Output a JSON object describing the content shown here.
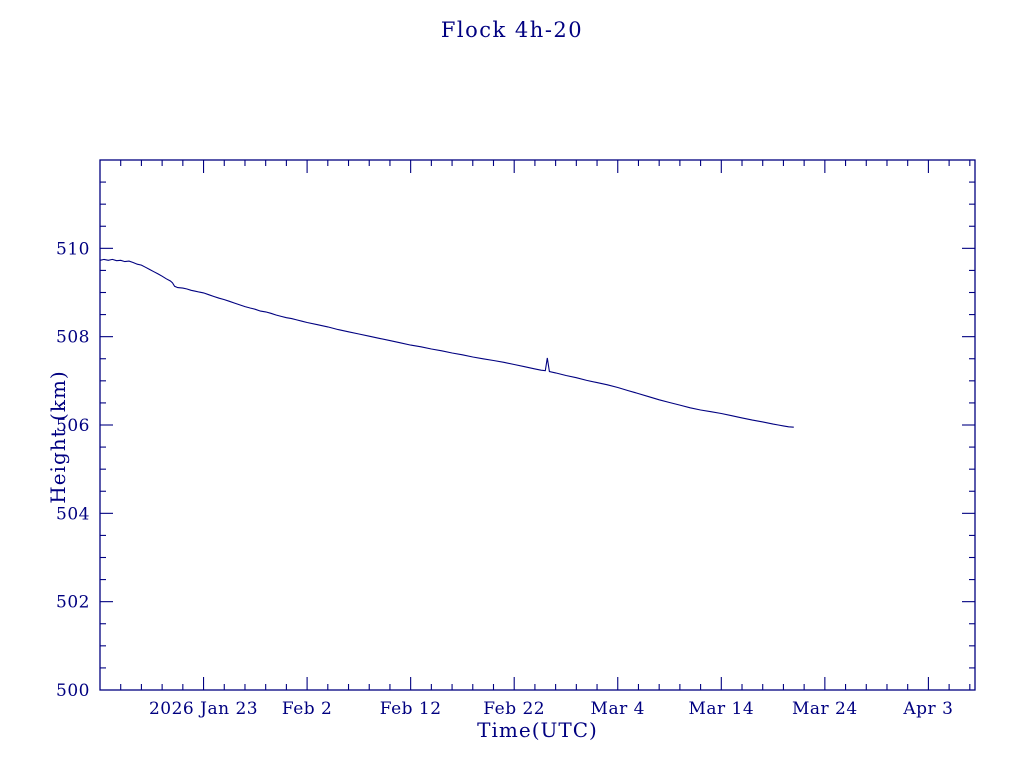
{
  "chart_data": {
    "type": "line",
    "title": "Flock 4h-20",
    "xlabel": "Time(UTC)",
    "ylabel": "Height (km)",
    "ylim": [
      500,
      512
    ],
    "xlim_days": [
      0,
      84.5
    ],
    "x_epoch": "day 0 = 2026 Jan 13 (UTC)",
    "grid": "off",
    "legend": "none",
    "line_color": "#000080",
    "axis_color": "#000080",
    "y_ticks_labeled": [
      500,
      502,
      504,
      506,
      508,
      510
    ],
    "y_minor_step": 0.5,
    "x_minor_step": 2,
    "x_ticks": [
      {
        "day": 10,
        "label": "2026 Jan 23"
      },
      {
        "day": 20,
        "label": "Feb 2"
      },
      {
        "day": 30,
        "label": "Feb 12"
      },
      {
        "day": 40,
        "label": "Feb 22"
      },
      {
        "day": 50,
        "label": "Mar 4"
      },
      {
        "day": 60,
        "label": "Mar 14"
      },
      {
        "day": 70,
        "label": "Mar 24"
      },
      {
        "day": 80,
        "label": "Apr 3"
      }
    ],
    "series": [
      {
        "name": "height",
        "points": [
          [
            0.0,
            509.73
          ],
          [
            0.4,
            509.75
          ],
          [
            0.8,
            509.73
          ],
          [
            1.2,
            509.75
          ],
          [
            1.6,
            509.72
          ],
          [
            2.0,
            509.73
          ],
          [
            2.4,
            509.7
          ],
          [
            2.8,
            509.71
          ],
          [
            3.2,
            509.68
          ],
          [
            3.6,
            509.64
          ],
          [
            4.0,
            509.62
          ],
          [
            4.4,
            509.57
          ],
          [
            4.8,
            509.52
          ],
          [
            5.2,
            509.47
          ],
          [
            5.6,
            509.42
          ],
          [
            6.0,
            509.37
          ],
          [
            6.4,
            509.31
          ],
          [
            6.8,
            509.26
          ],
          [
            7.0,
            509.22
          ],
          [
            7.2,
            509.14
          ],
          [
            7.5,
            509.11
          ],
          [
            8.0,
            509.1
          ],
          [
            8.4,
            509.08
          ],
          [
            8.8,
            509.05
          ],
          [
            9.2,
            509.03
          ],
          [
            9.6,
            509.01
          ],
          [
            10.0,
            508.99
          ],
          [
            10.5,
            508.95
          ],
          [
            11.0,
            508.91
          ],
          [
            11.5,
            508.87
          ],
          [
            12.0,
            508.84
          ],
          [
            12.5,
            508.8
          ],
          [
            13.0,
            508.76
          ],
          [
            13.5,
            508.72
          ],
          [
            14.0,
            508.68
          ],
          [
            14.5,
            508.65
          ],
          [
            15.0,
            508.62
          ],
          [
            15.5,
            508.58
          ],
          [
            16.0,
            508.56
          ],
          [
            16.5,
            508.53
          ],
          [
            17.0,
            508.49
          ],
          [
            17.5,
            508.46
          ],
          [
            18.0,
            508.43
          ],
          [
            18.5,
            508.41
          ],
          [
            19.0,
            508.38
          ],
          [
            19.5,
            508.35
          ],
          [
            20.0,
            508.32
          ],
          [
            21,
            508.27
          ],
          [
            22,
            508.22
          ],
          [
            23,
            508.16
          ],
          [
            24,
            508.11
          ],
          [
            25,
            508.06
          ],
          [
            26,
            508.01
          ],
          [
            27,
            507.96
          ],
          [
            28,
            507.91
          ],
          [
            29,
            507.86
          ],
          [
            30,
            507.81
          ],
          [
            31,
            507.77
          ],
          [
            32,
            507.72
          ],
          [
            33,
            507.68
          ],
          [
            34,
            507.63
          ],
          [
            35,
            507.59
          ],
          [
            36,
            507.54
          ],
          [
            37,
            507.5
          ],
          [
            38,
            507.46
          ],
          [
            39,
            507.42
          ],
          [
            40,
            507.37
          ],
          [
            41,
            507.32
          ],
          [
            42,
            507.27
          ],
          [
            42.6,
            507.24
          ],
          [
            43.0,
            507.23
          ],
          [
            43.2,
            507.52
          ],
          [
            43.4,
            507.21
          ],
          [
            44,
            507.18
          ],
          [
            45,
            507.12
          ],
          [
            46,
            507.07
          ],
          [
            47,
            507.01
          ],
          [
            48,
            506.96
          ],
          [
            49,
            506.91
          ],
          [
            50,
            506.85
          ],
          [
            51,
            506.78
          ],
          [
            52,
            506.71
          ],
          [
            53,
            506.64
          ],
          [
            54,
            506.57
          ],
          [
            55,
            506.51
          ],
          [
            56,
            506.45
          ],
          [
            57,
            506.39
          ],
          [
            58,
            506.34
          ],
          [
            59,
            506.3
          ],
          [
            60,
            506.26
          ],
          [
            61,
            506.21
          ],
          [
            62,
            506.16
          ],
          [
            63,
            506.11
          ],
          [
            64,
            506.07
          ],
          [
            65,
            506.02
          ],
          [
            65.5,
            506.0
          ],
          [
            66.0,
            505.98
          ],
          [
            66.5,
            505.96
          ],
          [
            67.0,
            505.95
          ]
        ]
      }
    ]
  }
}
